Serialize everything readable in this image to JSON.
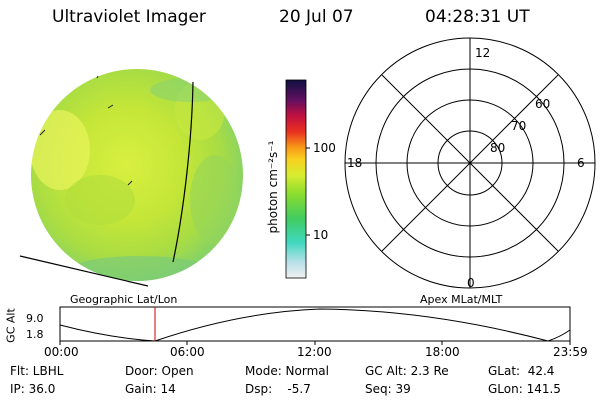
{
  "header": {
    "instrument": "Ultraviolet Imager",
    "date": "20 Jul 07",
    "time": "04:28:31 UT"
  },
  "colorbar": {
    "unit_label": "photon cm⁻²s⁻¹",
    "tick_100": "100",
    "tick_10": "10",
    "scale": "log"
  },
  "polar": {
    "label_12": "12",
    "label_18": "18",
    "label_6": "6",
    "label_0": "0",
    "label_60": "60",
    "label_70": "70",
    "label_80": "80"
  },
  "timeline": {
    "left_label": "Geographic Lat/Lon",
    "right_label": "Apex  MLat/MLT",
    "axis_title": "GC Alt",
    "y_top": "9.0",
    "y_bottom": "1.8",
    "ticks": [
      "00:00",
      "06:00",
      "12:00",
      "18:00",
      "23:59"
    ],
    "marker_color": "#cc0000"
  },
  "status": {
    "filter": "Flt: LBHL",
    "door": "Door: Open",
    "mode": "Mode: Normal",
    "gc_alt": "GC Alt: 2.3 Re",
    "glat": "GLat:  42.4",
    "ip": "IP: 36.0",
    "gain": "Gain: 14",
    "dsp": "Dsp:    -5.7",
    "seq": "Seq: 39",
    "glon": "GLon: 141.5"
  }
}
